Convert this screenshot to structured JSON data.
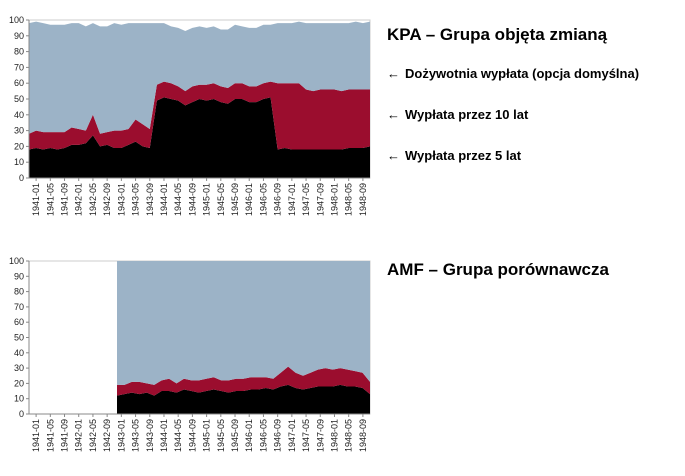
{
  "colors": {
    "annuity": "#9cb3c7",
    "ten_years": "#9b0d2e",
    "five_years": "#000000",
    "axis": "#888888"
  },
  "legend": {
    "arrow": "←",
    "annuity": "Dożywotnia wypłata (opcja domyślna)",
    "ten_years": "Wypłata przez 10 lat",
    "five_years": "Wypłata przez 5 lat"
  },
  "chart_data": [
    {
      "type": "area",
      "stacked": true,
      "title": "KPA – Grupa objęta zmianą",
      "ylim": [
        0,
        100
      ],
      "yticks": [
        0,
        10,
        20,
        30,
        40,
        50,
        60,
        70,
        80,
        90,
        100
      ],
      "x_tick_labels": [
        "1941-01",
        "1941-05",
        "1941-09",
        "1942-01",
        "1942-05",
        "1942-09",
        "1943-01",
        "1943-05",
        "1943-09",
        "1944-01",
        "1944-05",
        "1944-09",
        "1945-01",
        "1945-05",
        "1945-09",
        "1946-01",
        "1946-05",
        "1946-09",
        "1947-01",
        "1947-05",
        "1947-09",
        "1948-01",
        "1948-05",
        "1948-09"
      ],
      "series": [
        {
          "key": "five_years",
          "values": [
            18,
            19,
            18,
            19,
            18,
            19,
            21,
            21,
            22,
            27,
            20,
            21,
            19,
            19,
            21,
            23,
            20,
            19,
            49,
            51,
            50,
            49,
            46,
            48,
            50,
            49,
            50,
            48,
            47,
            50,
            50,
            48,
            48,
            50,
            51,
            18,
            19,
            18,
            18,
            18,
            18,
            18,
            18,
            18,
            18,
            19,
            19,
            19,
            20
          ]
        },
        {
          "key": "ten_years",
          "values": [
            10,
            11,
            11,
            10,
            11,
            10,
            11,
            10,
            8,
            13,
            8,
            8,
            11,
            11,
            10,
            14,
            14,
            12,
            10,
            10,
            10,
            9,
            9,
            10,
            9,
            10,
            10,
            10,
            10,
            10,
            10,
            10,
            10,
            10,
            10,
            42,
            41,
            42,
            42,
            38,
            37,
            38,
            38,
            38,
            37,
            37,
            37,
            37,
            36
          ]
        },
        {
          "key": "annuity",
          "values": [
            70,
            69,
            69,
            68,
            68,
            68,
            66,
            67,
            66,
            58,
            68,
            67,
            68,
            67,
            67,
            61,
            64,
            67,
            39,
            37,
            36,
            37,
            38,
            37,
            37,
            36,
            36,
            36,
            37,
            37,
            36,
            37,
            37,
            37,
            36,
            38,
            38,
            38,
            39,
            42,
            43,
            42,
            42,
            42,
            43,
            42,
            43,
            42,
            43
          ]
        }
      ]
    },
    {
      "type": "area",
      "stacked": true,
      "title": "AMF – Grupa porównawcza",
      "ylim": [
        0,
        100
      ],
      "yticks": [
        0,
        10,
        20,
        30,
        40,
        50,
        60,
        70,
        80,
        90,
        100
      ],
      "x_tick_labels": [
        "1941-01",
        "1941-05",
        "1941-09",
        "1942-01",
        "1942-05",
        "1942-09",
        "1943-01",
        "1943-05",
        "1943-09",
        "1944-01",
        "1944-05",
        "1944-09",
        "1945-01",
        "1945-05",
        "1945-09",
        "1946-01",
        "1946-05",
        "1946-09",
        "1947-01",
        "1947-05",
        "1947-09",
        "1948-01",
        "1948-05",
        "1948-09"
      ],
      "data_starts_at": "1943-01",
      "series": [
        {
          "key": "five_years",
          "values": [
            12,
            13,
            14,
            13,
            14,
            12,
            15,
            15,
            14,
            16,
            15,
            14,
            15,
            16,
            15,
            14,
            15,
            15,
            16,
            16,
            17,
            16,
            18,
            19,
            17,
            16,
            17,
            18,
            18,
            18,
            19,
            18,
            18,
            17,
            13
          ]
        },
        {
          "key": "ten_years",
          "values": [
            7,
            6,
            7,
            8,
            6,
            7,
            7,
            8,
            6,
            7,
            7,
            8,
            8,
            8,
            7,
            8,
            8,
            8,
            8,
            8,
            7,
            7,
            9,
            12,
            10,
            9,
            10,
            11,
            12,
            11,
            11,
            11,
            10,
            10,
            8
          ]
        },
        {
          "key": "annuity",
          "values": [
            81,
            81,
            79,
            79,
            80,
            81,
            78,
            77,
            80,
            77,
            78,
            78,
            77,
            76,
            78,
            78,
            77,
            77,
            76,
            76,
            76,
            77,
            73,
            69,
            73,
            75,
            73,
            71,
            70,
            71,
            70,
            71,
            72,
            73,
            79
          ]
        }
      ]
    }
  ]
}
